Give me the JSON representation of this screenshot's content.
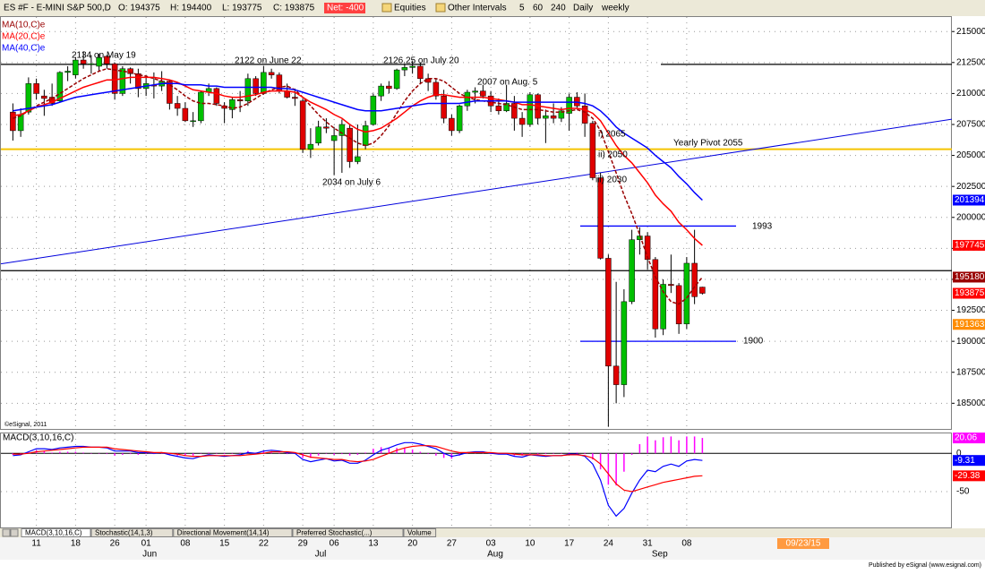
{
  "header": {
    "symbol": "ES #F - E-MINI S&P 500,D",
    "open": "O: 194375",
    "high": "H: 194400",
    "low": "L: 193775",
    "close": "C: 193875",
    "net": "Net: -400"
  },
  "toolbar": [
    "Equities",
    "Other Intervals",
    "5",
    "60",
    "240",
    "Daily",
    "weekly"
  ],
  "tabs": [
    "MACD(3,10,16,C)",
    "Stochastic(14,1,3)",
    "Directional Movement(14,14)",
    "Preferred Stochastic(...)",
    "Volume"
  ],
  "date_flag": "09/23/15",
  "footer": "Published by eSignal (www.esignal.com)",
  "chart_data": [
    {
      "type": "candlestick",
      "categories": [
        null,
        null,
        null,
        "11",
        null,
        null,
        null,
        null,
        "18",
        null,
        null,
        null,
        null,
        "26",
        null,
        null,
        null,
        "01",
        null,
        null,
        null,
        null,
        "08",
        null,
        null,
        null,
        null,
        "15",
        null,
        null,
        null,
        null,
        "22",
        null,
        null,
        null,
        null,
        "29",
        null,
        null,
        null,
        "06",
        null,
        null,
        null,
        null,
        "13",
        null,
        null,
        null,
        null,
        "20",
        null,
        null,
        null,
        null,
        "27",
        null,
        null,
        null,
        null,
        "03",
        null,
        null,
        null,
        null,
        "10",
        null,
        null,
        null,
        null,
        "17",
        null,
        null,
        null,
        null,
        "24",
        null,
        null,
        null,
        null,
        "31",
        null,
        null,
        null,
        null,
        "08",
        null,
        null
      ],
      "months": [
        "Jun",
        "Jul",
        "Aug",
        "Sep"
      ],
      "open": [
        208500,
        207000,
        208500,
        210800,
        209800,
        209700,
        209400,
        211700,
        211500,
        212700,
        212400,
        212200,
        213000,
        212400,
        210000,
        212000,
        211600,
        210400,
        210700,
        210600,
        211000,
        209200,
        208800,
        207800,
        207800,
        210100,
        210400,
        209000,
        208700,
        209500,
        209400,
        211200,
        210000,
        211700,
        211500,
        210200,
        209700,
        209400,
        205500,
        206000,
        207300,
        206200,
        206600,
        207200,
        204500,
        205800,
        207500,
        209800,
        210600,
        210400,
        211900,
        212100,
        212200,
        211200,
        210900,
        209800,
        208000,
        207000,
        209000,
        210100,
        210200,
        209800,
        209000,
        208600,
        209200,
        208000,
        207500,
        209900,
        208000,
        208200,
        208000,
        208400,
        209700,
        209000,
        207600,
        203200,
        196700,
        188000,
        186500,
        193200,
        198200,
        198500,
        196600,
        191000,
        194600,
        194500,
        191400,
        196300,
        194375
      ],
      "high": [
        209200,
        208800,
        211300,
        211200,
        210300,
        210800,
        211800,
        212200,
        212900,
        213400,
        213100,
        213200,
        213100,
        212500,
        212200,
        212100,
        212000,
        211500,
        211700,
        211800,
        211100,
        209800,
        209300,
        208500,
        210200,
        210800,
        210500,
        209300,
        209700,
        210200,
        211600,
        211400,
        212200,
        212000,
        211700,
        210800,
        210400,
        209600,
        207200,
        207800,
        208000,
        207300,
        207900,
        207500,
        207500,
        207800,
        210000,
        210800,
        211000,
        212000,
        212400,
        212625,
        212500,
        211600,
        211200,
        210300,
        208300,
        209100,
        210300,
        210500,
        210700,
        210200,
        209600,
        210700,
        209800,
        208500,
        210100,
        210000,
        208700,
        209200,
        208900,
        210000,
        210100,
        210000,
        207800,
        203600,
        197000,
        194800,
        194200,
        199000,
        199200,
        198800,
        196800,
        195000,
        197000,
        194700,
        196800,
        199000,
        194400
      ],
      "low": [
        206200,
        206500,
        208300,
        209500,
        208200,
        209000,
        209300,
        211000,
        211200,
        212000,
        211600,
        211800,
        212000,
        209500,
        209800,
        210800,
        209700,
        209800,
        209600,
        210200,
        208700,
        208200,
        207700,
        207300,
        207600,
        209800,
        209000,
        207600,
        208000,
        208500,
        209000,
        209800,
        209900,
        211200,
        210000,
        209600,
        209000,
        205200,
        204800,
        205800,
        206800,
        203400,
        203600,
        204000,
        204300,
        205500,
        207400,
        209400,
        210000,
        210300,
        211400,
        211600,
        210800,
        210200,
        209500,
        207600,
        206600,
        206800,
        208600,
        209200,
        209600,
        208500,
        208300,
        208500,
        207000,
        206500,
        207300,
        207500,
        206000,
        207600,
        207700,
        207000,
        208800,
        206500,
        203000,
        196600,
        183100,
        185000,
        185500,
        193000,
        197000,
        195800,
        190300,
        190500,
        193900,
        190600,
        191000,
        193000,
        193775
      ],
      "close": [
        207000,
        208300,
        210800,
        210000,
        209600,
        209200,
        211700,
        211800,
        212700,
        212400,
        212400,
        212900,
        212400,
        210000,
        212000,
        211600,
        210400,
        210800,
        210600,
        211000,
        209200,
        208800,
        207800,
        207800,
        210100,
        210400,
        209200,
        208800,
        209500,
        209400,
        211200,
        210000,
        211700,
        211500,
        210200,
        209700,
        209600,
        205500,
        205900,
        207300,
        207200,
        206600,
        207500,
        204500,
        204900,
        207400,
        209800,
        210600,
        210400,
        211900,
        212100,
        212200,
        211200,
        210900,
        209800,
        208000,
        207000,
        209000,
        210100,
        210200,
        209800,
        209000,
        208600,
        209200,
        208000,
        207500,
        209900,
        208000,
        208200,
        208000,
        208600,
        209700,
        209000,
        207600,
        203200,
        196700,
        188000,
        186500,
        193200,
        198200,
        198500,
        196600,
        191000,
        194600,
        194500,
        191400,
        196300,
        193600,
        193875
      ],
      "up_color": "#00c000",
      "down_color": "#e00000",
      "series": [
        {
          "name": "MA(10,C)e",
          "color": "#990000",
          "dash": true,
          "values": [
            208000,
            208200,
            208600,
            209000,
            209300,
            209600,
            210000,
            210400,
            210800,
            211200,
            211500,
            211800,
            212000,
            211900,
            211800,
            211700,
            211500,
            211400,
            211200,
            211000,
            210700,
            210300,
            209800,
            209400,
            209200,
            209200,
            209100,
            209000,
            208800,
            208900,
            209200,
            209600,
            210000,
            210300,
            210500,
            210600,
            210300,
            209700,
            209000,
            208300,
            207700,
            207200,
            206800,
            206400,
            206000,
            205800,
            206000,
            206600,
            207400,
            208400,
            209400,
            210200,
            210800,
            211200,
            211200,
            211000,
            210500,
            210000,
            209700,
            209500,
            209400,
            209300,
            209200,
            209100,
            208900,
            208700,
            208700,
            208700,
            208600,
            208500,
            208500,
            208600,
            208700,
            208500,
            208000,
            207000,
            205300,
            203600,
            201800,
            200300,
            198600,
            196800,
            195200,
            194000,
            193200,
            193000,
            193500,
            194400,
            195180
          ]
        },
        {
          "name": "MA(20,C)e",
          "color": "#ff0000",
          "dash": false,
          "values": [
            208200,
            208300,
            208600,
            208900,
            209100,
            209300,
            209600,
            209900,
            210200,
            210500,
            210700,
            210900,
            211100,
            211100,
            211200,
            211300,
            211300,
            211300,
            211300,
            211200,
            211100,
            210900,
            210600,
            210300,
            210200,
            210100,
            210000,
            209800,
            209700,
            209700,
            209800,
            209900,
            210100,
            210200,
            210200,
            210200,
            210100,
            209700,
            209300,
            209000,
            208700,
            208300,
            208000,
            207500,
            207100,
            206900,
            207000,
            207200,
            207600,
            208000,
            208500,
            209000,
            209400,
            209700,
            209900,
            209900,
            209800,
            209700,
            209700,
            209700,
            209700,
            209600,
            209500,
            209400,
            209300,
            209100,
            209100,
            209000,
            208900,
            208800,
            208700,
            208800,
            208800,
            208700,
            208400,
            207800,
            206800,
            205800,
            205000,
            204400,
            203600,
            202800,
            201800,
            201100,
            200500,
            199600,
            199000,
            198300,
            197745
          ]
        },
        {
          "name": "MA(40,C)e",
          "color": "#0000ff",
          "dash": false,
          "values": [
            208600,
            208700,
            208800,
            208900,
            209000,
            209100,
            209300,
            209500,
            209700,
            209800,
            209900,
            210000,
            210100,
            210200,
            210300,
            210400,
            210500,
            210600,
            210700,
            210800,
            210800,
            210800,
            210700,
            210700,
            210700,
            210600,
            210600,
            210500,
            210500,
            210500,
            210500,
            210500,
            210500,
            210500,
            210400,
            210400,
            210300,
            210100,
            209900,
            209700,
            209500,
            209300,
            209100,
            208900,
            208700,
            208600,
            208600,
            208600,
            208700,
            208800,
            208900,
            209000,
            209100,
            209200,
            209200,
            209200,
            209200,
            209200,
            209300,
            209400,
            209400,
            209400,
            209400,
            209400,
            209300,
            209300,
            209300,
            209300,
            209300,
            209300,
            209300,
            209300,
            209300,
            209200,
            209000,
            208600,
            208000,
            207300,
            206800,
            206400,
            206000,
            205600,
            205000,
            204500,
            204000,
            203300,
            202700,
            202000,
            201394
          ]
        }
      ],
      "ylim": [
        183000,
        216100
      ],
      "yticks": [
        215000,
        212500,
        210000,
        207500,
        205000,
        202500,
        200000,
        197500,
        195000,
        192500,
        190000,
        187500,
        185000
      ],
      "grid": true,
      "levels": [
        {
          "value": 205500,
          "color": "#f5c400"
        },
        {
          "value": 212350,
          "color": "#000000"
        },
        {
          "value": 195700,
          "color": "#000000"
        },
        {
          "value": 199300,
          "color": "#0000ff"
        },
        {
          "value": 190000,
          "color": "#0000ff"
        }
      ],
      "trendline": {
        "color": "#0000dd",
        "values": [
          196250,
          207925
        ]
      },
      "price_flags": [
        {
          "value": 201394,
          "color": "#0000ff"
        },
        {
          "value": 197745,
          "color": "#ff0000"
        },
        {
          "value": 195180,
          "color": "#990000"
        },
        {
          "value": 193875,
          "color": "#ff0000"
        },
        {
          "value": 191363,
          "color": "#ff8c00"
        }
      ],
      "annotations": [
        "2134 on May 19",
        "2122 on June 22",
        "2126.25 on July 20",
        "2007 on Aug. 5",
        "2034 on July 6",
        "i) 2065",
        "ii) 2050",
        "iii) 2030",
        "Yearly Pivot 2055",
        "1993",
        "1900"
      ],
      "copyright": "©eSignal, 2011"
    },
    {
      "type": "macd",
      "title": "MACD(3,10,16,C)",
      "series": [
        {
          "color": "#0000ff",
          "values": [
            -3,
            -2,
            2,
            6,
            6,
            5,
            7,
            8,
            9,
            9,
            8,
            8,
            7,
            3,
            3,
            3,
            1,
            1,
            0,
            1,
            -2,
            -4,
            -6,
            -7,
            -4,
            -2,
            -3,
            -4,
            -3,
            -2,
            1,
            0,
            3,
            4,
            3,
            1,
            0,
            -8,
            -11,
            -9,
            -7,
            -10,
            -9,
            -13,
            -13,
            -9,
            -2,
            4,
            7,
            11,
            14,
            14,
            12,
            9,
            6,
            0,
            -4,
            -2,
            1,
            2,
            2,
            0,
            -1,
            -1,
            -4,
            -5,
            -2,
            -3,
            -4,
            -3,
            -3,
            -1,
            -1,
            -4,
            -14,
            -35,
            -68,
            -82,
            -72,
            -52,
            -35,
            -22,
            -24,
            -17,
            -14,
            -17,
            -10,
            -8,
            -9.31
          ]
        },
        {
          "color": "#ff0000",
          "values": [
            -1,
            -1,
            0,
            2,
            3,
            4,
            5,
            6,
            7,
            8,
            8,
            8,
            8,
            6,
            5,
            4,
            3,
            2,
            1,
            1,
            0,
            -1,
            -3,
            -4,
            -4,
            -3,
            -3,
            -3,
            -3,
            -3,
            -2,
            -1,
            0,
            2,
            2,
            2,
            1,
            -2,
            -5,
            -6,
            -7,
            -8,
            -8,
            -10,
            -11,
            -10,
            -8,
            -4,
            0,
            4,
            7,
            9,
            10,
            10,
            9,
            6,
            3,
            1,
            1,
            1,
            1,
            1,
            0,
            0,
            -1,
            -2,
            -2,
            -2,
            -3,
            -3,
            -3,
            -2,
            -2,
            -3,
            -6,
            -14,
            -27,
            -40,
            -48,
            -50,
            -47,
            -44,
            -41,
            -38,
            -36,
            -34,
            -32,
            -30,
            -29.38
          ]
        }
      ],
      "histogram": {
        "color": "#ff00ff",
        "values": [
          -2,
          -1,
          2,
          4,
          3,
          1,
          2,
          2,
          2,
          1,
          0,
          0,
          -1,
          -3,
          -2,
          -1,
          -2,
          -1,
          -1,
          0,
          -2,
          -3,
          -3,
          -3,
          0,
          1,
          0,
          -1,
          0,
          1,
          3,
          1,
          3,
          2,
          1,
          -1,
          -1,
          -6,
          -6,
          -3,
          0,
          -2,
          -1,
          -3,
          -2,
          1,
          6,
          8,
          7,
          7,
          7,
          5,
          2,
          -1,
          -3,
          -6,
          -7,
          -3,
          0,
          1,
          1,
          -1,
          -1,
          -1,
          -3,
          -3,
          0,
          -1,
          -1,
          0,
          0,
          1,
          1,
          -1,
          -8,
          -21,
          -41,
          -42,
          -24,
          -2,
          12,
          22,
          17,
          21,
          22,
          17,
          22,
          22,
          20.06
        ]
      },
      "ylim": [
        -98,
        26
      ],
      "yticks": [
        0,
        -50
      ],
      "flags": [
        {
          "value": 20.06,
          "color": "#ff00ff"
        },
        {
          "value": -9.31,
          "color": "#0000ff"
        },
        {
          "value": -29.38,
          "color": "#ff0000"
        }
      ]
    }
  ]
}
